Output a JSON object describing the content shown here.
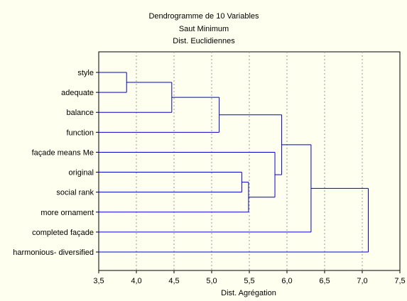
{
  "chart_data": {
    "type": "dendrogram",
    "title_lines": [
      "Dendrogramme de 10  Variables",
      "Saut Minimum",
      "Dist. Euclidiennes"
    ],
    "xlabel": "Dist. Agrégation",
    "ylabel": "",
    "xlim": [
      3.5,
      7.5
    ],
    "x_ticks": [
      "3,5",
      "4,0",
      "4,5",
      "5,0",
      "5,5",
      "6,0",
      "6,5",
      "7,0",
      "7,5"
    ],
    "x_tick_values": [
      3.5,
      4.0,
      4.5,
      5.0,
      5.5,
      6.0,
      6.5,
      7.0,
      7.5
    ],
    "grid": true,
    "leaves": [
      "style",
      "adequate",
      "balance",
      "function",
      "façade means Me",
      "original",
      "social rank",
      "more ornament ",
      "completed façade",
      "harmonious- diversified"
    ],
    "merges": [
      {
        "left": "leaf:0",
        "right": "leaf:1",
        "height": 3.87
      },
      {
        "left": "merge:0",
        "right": "leaf:2",
        "height": 4.47
      },
      {
        "left": "merge:1",
        "right": "leaf:3",
        "height": 5.1
      },
      {
        "left": "leaf:5",
        "right": "leaf:6",
        "height": 5.4
      },
      {
        "left": "merge:3",
        "right": "leaf:7",
        "height": 5.49
      },
      {
        "left": "leaf:4",
        "right": "merge:4",
        "height": 5.84
      },
      {
        "left": "merge:2",
        "right": "merge:5",
        "height": 5.93
      },
      {
        "left": "merge:6",
        "right": "leaf:8",
        "height": 6.32
      },
      {
        "left": "merge:7",
        "right": "leaf:9",
        "height": 7.08
      }
    ],
    "colors": {
      "background": "#fffff0",
      "line": "#0000cc",
      "grid": "#999999",
      "axes": "#000000"
    }
  }
}
